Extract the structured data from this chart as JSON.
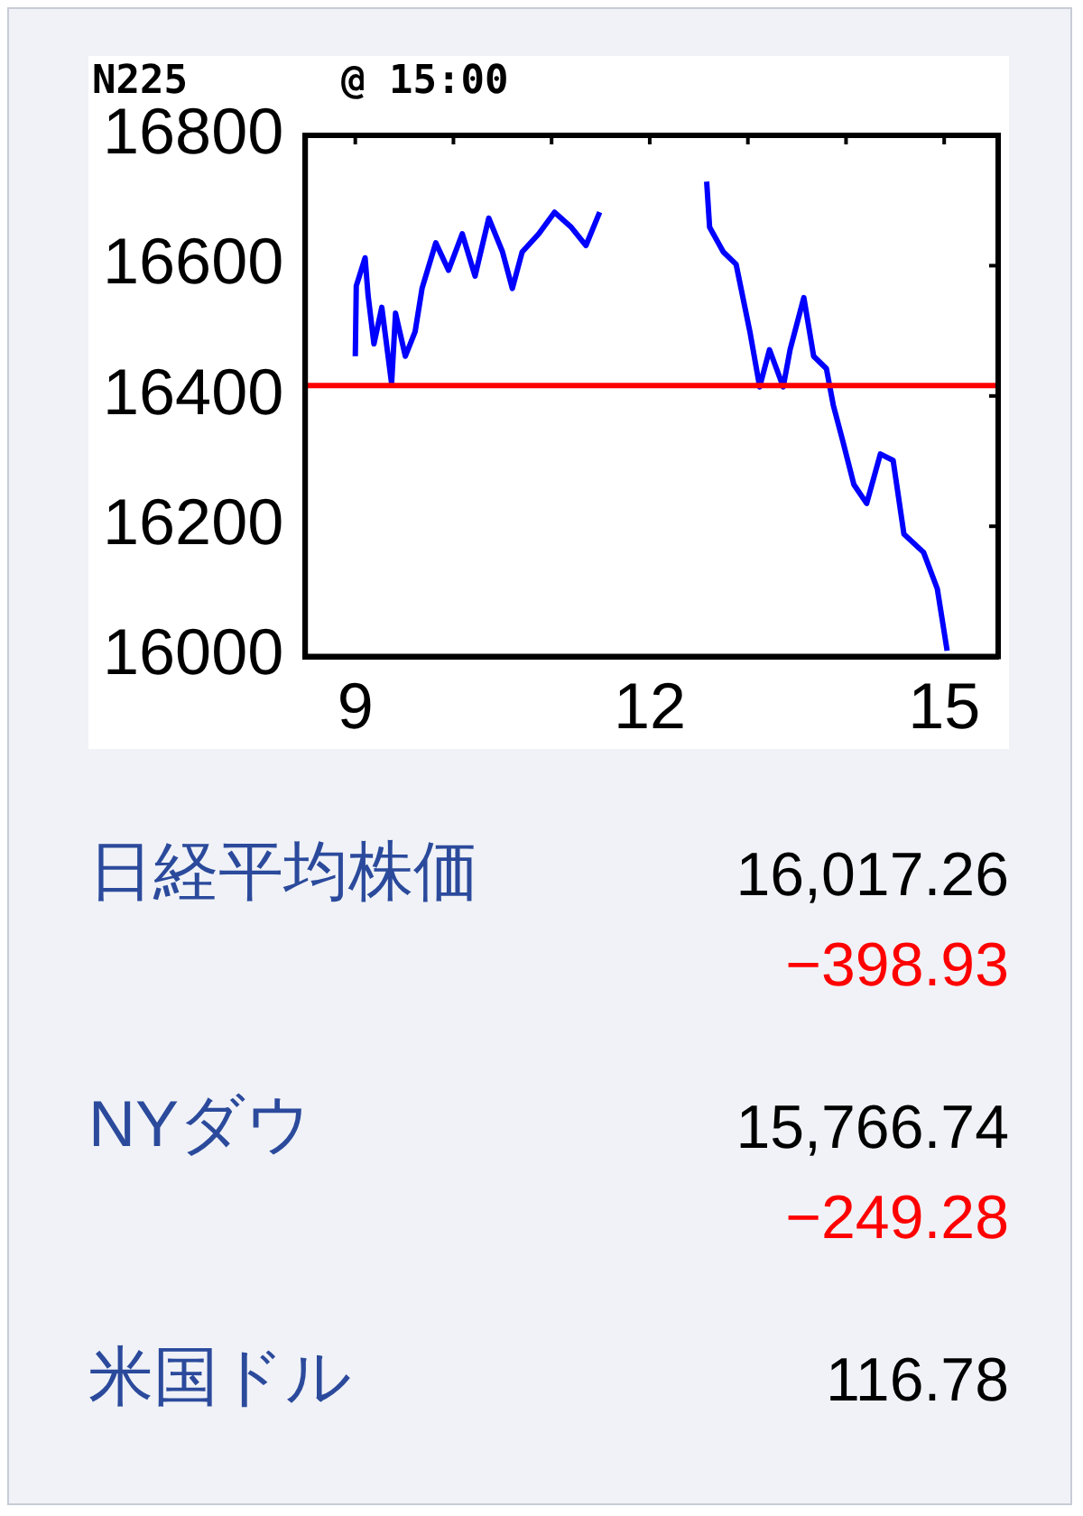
{
  "chart_data": [
    {
      "type": "line",
      "title": "N225",
      "subtitle": "@ 15:00",
      "x": [
        9.0,
        9.01,
        9.1,
        9.13,
        9.19,
        9.27,
        9.37,
        9.41,
        9.51,
        9.61,
        9.68,
        9.82,
        9.95,
        10.09,
        10.22,
        10.36,
        10.5,
        10.6,
        10.7,
        10.87,
        11.03,
        11.2,
        11.35,
        11.49,
        12.0,
        12.58,
        12.61,
        12.75,
        12.88,
        13.02,
        13.12,
        13.22,
        13.36,
        13.43,
        13.57,
        13.67,
        13.8,
        13.87,
        13.97,
        14.08,
        14.21,
        14.35,
        14.48,
        14.59,
        14.79,
        14.93,
        15.03
      ],
      "series": [
        {
          "color": "#0000ff",
          "values": [
            16461,
            16569,
            16612,
            16555,
            16480,
            16536,
            16419,
            16527,
            16461,
            16499,
            16565,
            16635,
            16593,
            16649,
            16584,
            16673,
            16621,
            16565,
            16621,
            16649,
            16682,
            16659,
            16631,
            16682,
            null,
            16729,
            16659,
            16621,
            16602,
            16499,
            16414,
            16471,
            16414,
            16471,
            16551,
            16461,
            16442,
            16386,
            16329,
            16264,
            16235,
            16311,
            16301,
            16188,
            16160,
            16104,
            16009
          ]
        }
      ],
      "xlim": [
        8.49,
        15.55
      ],
      "xticks": [
        9,
        {
          "value": 10,
          "label": null
        },
        {
          "value": 11,
          "label": null
        },
        12,
        {
          "value": 13,
          "label": null
        },
        {
          "value": 14,
          "label": null
        },
        15
      ],
      "ylim": [
        16000,
        16800
      ],
      "yticks": [
        16000,
        16200,
        16400,
        16600,
        16800
      ],
      "ref_lines": [
        {
          "axis": "y",
          "value": 16416,
          "color": "#ff0000"
        }
      ],
      "marker": "none",
      "line_style": "solid"
    },
    {
      "type": "other",
      "categories": [
        "日経平均株価",
        "NYダウ",
        "米国ドル"
      ],
      "series": [
        {
          "color": "#000000",
          "values": [
            16017.26,
            15766.74,
            116.78
          ],
          "value_labels": [
            "16,017.26",
            "15,766.74",
            "116.78"
          ]
        },
        {
          "color": "#ff0000",
          "values": [
            -398.93,
            -249.28,
            null
          ],
          "value_labels": [
            "−398.93",
            "−249.28",
            null
          ]
        }
      ]
    }
  ]
}
